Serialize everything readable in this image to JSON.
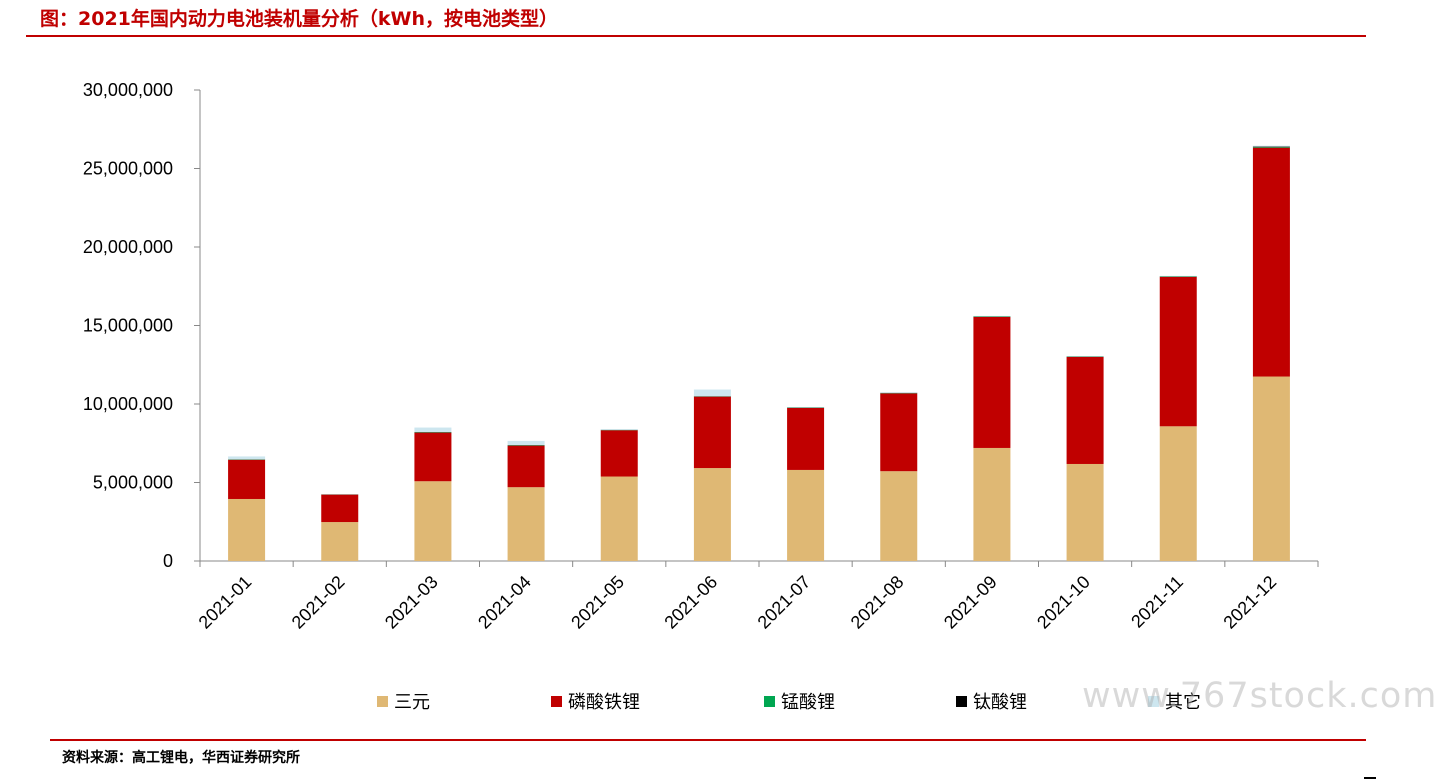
{
  "header": {
    "title": "图：2021年国内动力电池装机量分析（kWh，按电池类型）"
  },
  "footer": {
    "source": "资料来源：高工锂电，华西证券研究所"
  },
  "watermark": {
    "text": "www.767stock.com"
  },
  "colors": {
    "三元": "#dfb874",
    "磷酸铁锂": "#c00000",
    "锰酸锂": "#00a651",
    "钛酸锂": "#000000",
    "其它": "#cde6ef",
    "accent": "#c00000"
  },
  "chart_data": {
    "type": "bar",
    "stacked": true,
    "title": "",
    "xlabel": "",
    "ylabel": "",
    "ylim": [
      0,
      30000000
    ],
    "y_ticks": [
      "0",
      "5,000,000",
      "10,000,000",
      "15,000,000",
      "20,000,000",
      "25,000,000",
      "30,000,000"
    ],
    "categories": [
      "2021-01",
      "2021-02",
      "2021-03",
      "2021-04",
      "2021-05",
      "2021-06",
      "2021-07",
      "2021-08",
      "2021-09",
      "2021-10",
      "2021-11",
      "2021-12"
    ],
    "series": [
      {
        "name": "三元",
        "values": [
          3950000,
          2480000,
          5080000,
          4700000,
          5380000,
          5920000,
          5800000,
          5720000,
          7200000,
          6180000,
          8580000,
          11750000
        ]
      },
      {
        "name": "磷酸铁锂",
        "values": [
          2500000,
          1750000,
          3100000,
          2650000,
          2950000,
          4550000,
          3950000,
          4960000,
          8350000,
          6820000,
          9520000,
          14580000
        ]
      },
      {
        "name": "锰酸锂",
        "values": [
          20000,
          10000,
          30000,
          30000,
          20000,
          20000,
          20000,
          20000,
          30000,
          20000,
          30000,
          50000
        ]
      },
      {
        "name": "钛酸锂",
        "values": [
          10000,
          5000,
          10000,
          10000,
          5000,
          10000,
          10000,
          10000,
          10000,
          10000,
          10000,
          20000
        ]
      },
      {
        "name": "其它",
        "values": [
          180000,
          15000,
          280000,
          260000,
          50000,
          420000,
          20000,
          40000,
          20000,
          20000,
          20000,
          50000
        ]
      }
    ],
    "legend_position": "bottom",
    "grid": false
  }
}
